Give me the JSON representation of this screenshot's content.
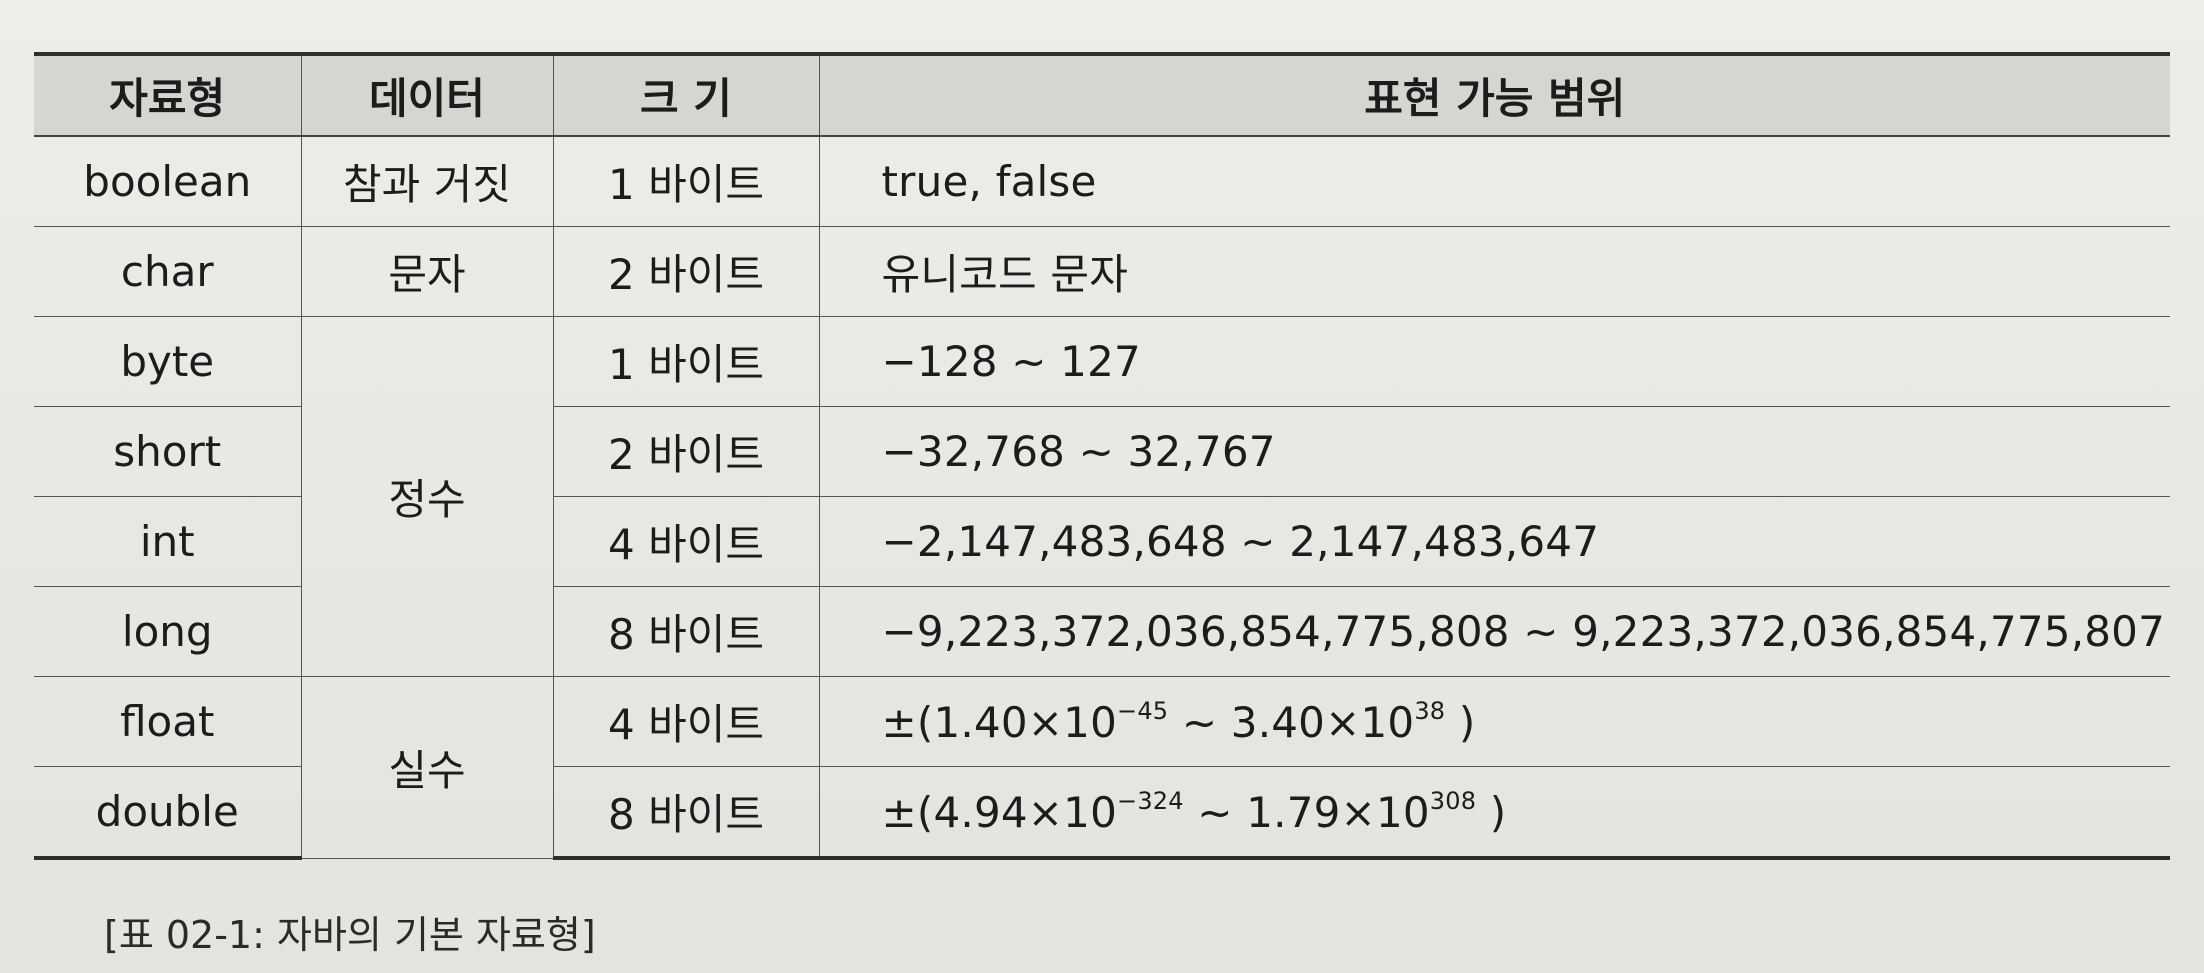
{
  "table": {
    "headers": [
      "자료형",
      "데이터",
      "크 기",
      "표현 가능 범위"
    ],
    "rows": [
      {
        "type": "boolean",
        "data": "참과 거짓",
        "size": "1 바이트",
        "range": "true, false"
      },
      {
        "type": "char",
        "data": "문자",
        "size": "2 바이트",
        "range": "유니코드 문자"
      },
      {
        "type": "byte",
        "size": "1 바이트",
        "range": "−128 ~ 127"
      },
      {
        "type": "short",
        "size": "2 바이트",
        "range": "−32,768 ~ 32,767"
      },
      {
        "type": "int",
        "data": "정수",
        "size": "4 바이트",
        "range": "−2,147,483,648 ~ 2,147,483,647"
      },
      {
        "type": "long",
        "size": "8 바이트",
        "range": "−9,223,372,036,854,775,808 ~ 9,223,372,036,854,775,807"
      },
      {
        "type": "float",
        "size": "4 바이트",
        "range": {
          "pm": "±(1.40×10",
          "exp1": "−45",
          "mid": " ~ 3.40×10",
          "exp2": "38",
          "end": " )"
        }
      },
      {
        "type": "double",
        "data": "실수",
        "size": "8 바이트",
        "range": {
          "pm": "±(4.94×10",
          "exp1": "−324",
          "mid": " ~ 1.79×10",
          "exp2": "308",
          "end": " )"
        }
      }
    ]
  },
  "caption": "[표 02-1: 자바의 기본 자료형]"
}
